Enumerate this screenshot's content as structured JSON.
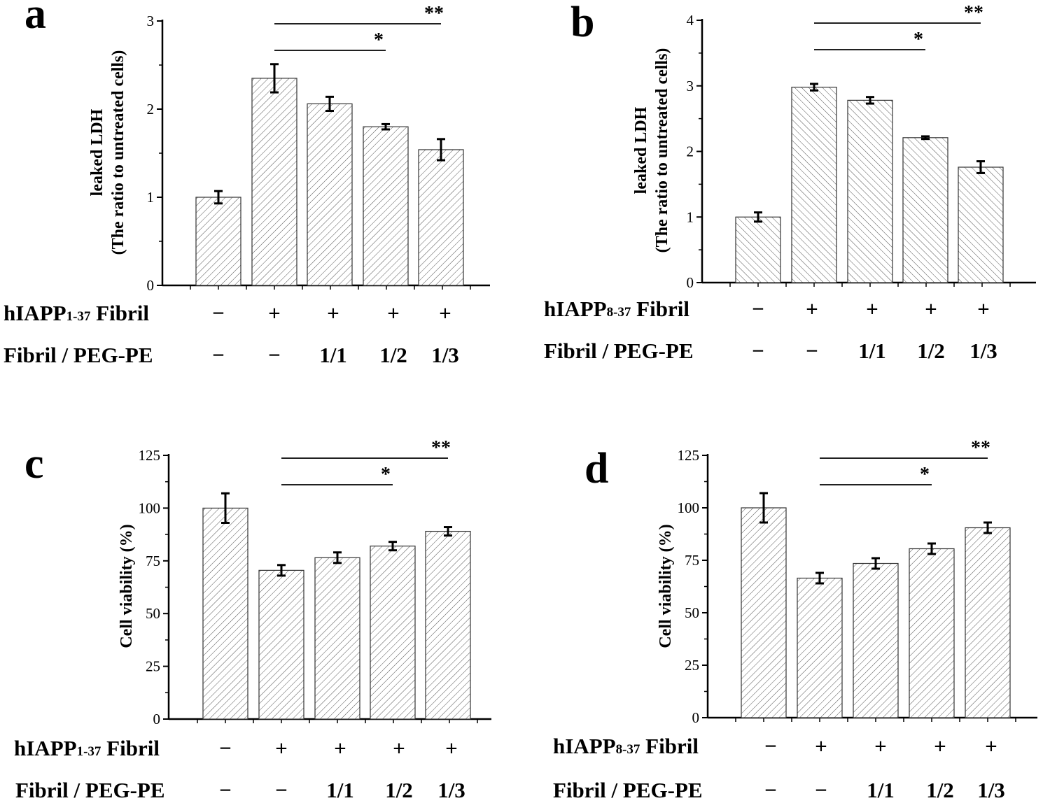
{
  "chart_data": [
    {
      "type": "bar",
      "panel": "a",
      "ylabel_line1": "leaked LDH",
      "ylabel_line2": "(The ratio to untreated cells)",
      "ylim": [
        0,
        3
      ],
      "yticks": [
        "0",
        "1",
        "2",
        "3"
      ],
      "values": [
        1.0,
        2.35,
        2.06,
        1.8,
        1.54
      ],
      "errors": [
        0.07,
        0.16,
        0.08,
        0.03,
        0.12
      ],
      "hatch": "forward",
      "row1": {
        "main": "hIAPP",
        "sub": "1-37",
        "rest": " Fibril",
        "values": [
          "−",
          "+",
          "+",
          "+",
          "+"
        ]
      },
      "row2": {
        "label": "Fibril / PEG-PE",
        "values": [
          "−",
          "−",
          "1/1",
          "1/2",
          "1/3"
        ]
      },
      "significance": [
        {
          "from": 1,
          "to": 3,
          "label": "*"
        },
        {
          "from": 1,
          "to": 4,
          "label": "**"
        }
      ]
    },
    {
      "type": "bar",
      "panel": "b",
      "ylabel_line1": "leaked LDH",
      "ylabel_line2": "(The ratio to untreated cells)",
      "ylim": [
        0,
        4
      ],
      "yticks": [
        "0",
        "1",
        "2",
        "3",
        "4"
      ],
      "values": [
        1.0,
        2.98,
        2.78,
        2.21,
        1.76
      ],
      "errors": [
        0.07,
        0.05,
        0.05,
        0.02,
        0.09
      ],
      "hatch": "backward",
      "row1": {
        "main": "hIAPP",
        "sub": "8-37",
        "rest": " Fibril",
        "values": [
          "−",
          "+",
          "+",
          "+",
          "+"
        ]
      },
      "row2": {
        "label": "Fibril / PEG-PE",
        "values": [
          "−",
          "−",
          "1/1",
          "1/2",
          "1/3"
        ]
      },
      "significance": [
        {
          "from": 1,
          "to": 3,
          "label": "*"
        },
        {
          "from": 1,
          "to": 4,
          "label": "**"
        }
      ]
    },
    {
      "type": "bar",
      "panel": "c",
      "ylabel_line1": "Cell viability (%)",
      "ylabel_line2": "",
      "ylim": [
        0,
        125
      ],
      "yticks": [
        "0",
        "25",
        "50",
        "75",
        "100",
        "125"
      ],
      "values": [
        100,
        70.5,
        76.5,
        82,
        89
      ],
      "errors": [
        7,
        2.5,
        2.5,
        2,
        2
      ],
      "hatch": "forward",
      "row1": {
        "main": "hIAPP",
        "sub": "1-37",
        "rest": " Fibril",
        "values": [
          "−",
          "+",
          "+",
          "+",
          "+"
        ]
      },
      "row2": {
        "label": "Fibril / PEG-PE",
        "values": [
          "−",
          "−",
          "1/1",
          "1/2",
          "1/3"
        ]
      },
      "significance": [
        {
          "from": 1,
          "to": 3,
          "label": "*"
        },
        {
          "from": 1,
          "to": 4,
          "label": "**"
        }
      ]
    },
    {
      "type": "bar",
      "panel": "d",
      "ylabel_line1": "Cell viability (%)",
      "ylabel_line2": "",
      "ylim": [
        0,
        125
      ],
      "yticks": [
        "0",
        "25",
        "50",
        "75",
        "100",
        "125"
      ],
      "values": [
        100,
        66.5,
        73.5,
        80.5,
        90.5
      ],
      "errors": [
        7,
        2.5,
        2.5,
        2.5,
        2.5
      ],
      "hatch": "forward",
      "row1": {
        "main": "hIAPP",
        "sub": "8-37",
        "rest": " Fibril",
        "values": [
          "−",
          "+",
          "+",
          "+",
          "+"
        ]
      },
      "row2": {
        "label": "Fibril / PEG-PE",
        "values": [
          "−",
          "−",
          "1/1",
          "1/2",
          "1/3"
        ]
      },
      "significance": [
        {
          "from": 1,
          "to": 3,
          "label": "*"
        },
        {
          "from": 1,
          "to": 4,
          "label": "**"
        }
      ]
    }
  ],
  "colors": {
    "bar_stroke": "#333333",
    "hatch": "#555555",
    "axis": "#000000",
    "background": "#ffffff"
  }
}
